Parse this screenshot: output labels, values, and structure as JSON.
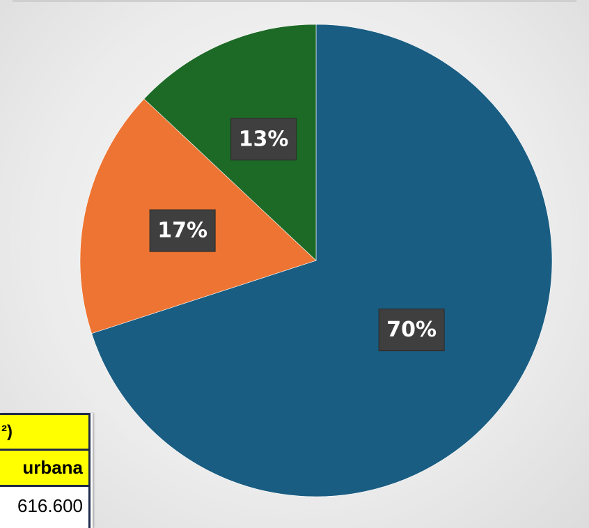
{
  "chart_data": {
    "type": "pie",
    "title": "",
    "legend": "none",
    "start_angle_deg": 0,
    "direction": "clockwise",
    "slices": [
      {
        "value": 70,
        "label": "70%",
        "color": "#1a5d82"
      },
      {
        "value": 17,
        "label": "17%",
        "color": "#ed7432"
      },
      {
        "value": 13,
        "label": "13%",
        "color": "#1d6a27"
      }
    ]
  },
  "table_fragment": {
    "header_cell": "²)",
    "subheader_cell": "urbana",
    "value_cell": "616.600"
  }
}
